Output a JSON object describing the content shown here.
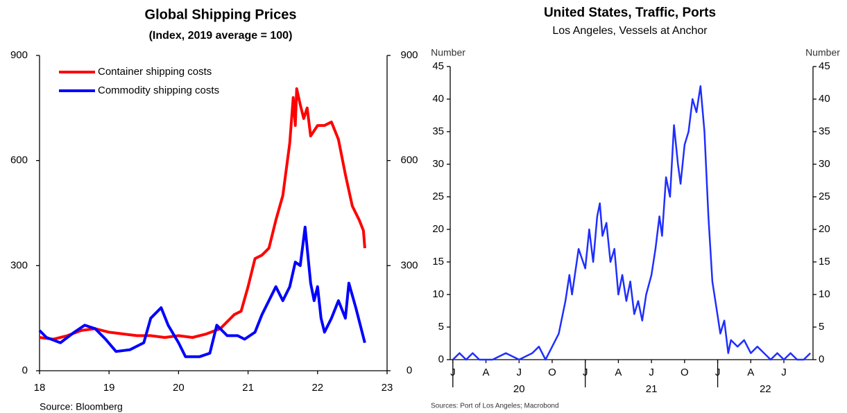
{
  "chart_data": [
    {
      "type": "line",
      "title": "Global Shipping Prices",
      "subtitle": "(Index,  2019 average = 100)",
      "source": "Source: Bloomberg",
      "xlim": [
        18,
        23
      ],
      "xticks": [
        18,
        19,
        20,
        21,
        22,
        23
      ],
      "ylim": [
        0,
        900
      ],
      "yticks": [
        0,
        300,
        600,
        900
      ],
      "y2lim": [
        0,
        900
      ],
      "y2ticks": [
        0,
        300,
        600,
        900
      ],
      "legend": "upper-left",
      "series": [
        {
          "name": "Container shipping costs",
          "color": "#ff0000",
          "x": [
            18.0,
            18.2,
            18.4,
            18.6,
            18.8,
            19.0,
            19.2,
            19.4,
            19.6,
            19.8,
            20.0,
            20.2,
            20.4,
            20.6,
            20.8,
            20.9,
            21.0,
            21.1,
            21.2,
            21.3,
            21.4,
            21.5,
            21.6,
            21.65,
            21.68,
            21.7,
            21.75,
            21.8,
            21.85,
            21.9,
            22.0,
            22.1,
            22.2,
            22.3,
            22.4,
            22.5,
            22.6,
            22.66,
            22.68
          ],
          "values": [
            95,
            90,
            100,
            115,
            120,
            110,
            105,
            100,
            100,
            95,
            100,
            95,
            105,
            120,
            160,
            170,
            240,
            320,
            330,
            350,
            430,
            500,
            650,
            780,
            700,
            805,
            760,
            720,
            750,
            670,
            700,
            700,
            710,
            660,
            560,
            470,
            430,
            400,
            350
          ]
        },
        {
          "name": "Commodity shipping costs",
          "color": "#0000ff",
          "x": [
            18.0,
            18.1,
            18.3,
            18.5,
            18.65,
            18.8,
            18.95,
            19.1,
            19.3,
            19.5,
            19.6,
            19.75,
            19.85,
            20.0,
            20.1,
            20.3,
            20.45,
            20.55,
            20.7,
            20.85,
            20.95,
            21.1,
            21.2,
            21.4,
            21.5,
            21.6,
            21.68,
            21.75,
            21.82,
            21.9,
            21.95,
            22.0,
            22.05,
            22.1,
            22.2,
            22.3,
            22.4,
            22.45,
            22.55,
            22.68
          ],
          "values": [
            115,
            95,
            80,
            110,
            130,
            120,
            90,
            55,
            60,
            80,
            150,
            180,
            130,
            80,
            40,
            40,
            50,
            130,
            100,
            100,
            90,
            110,
            160,
            240,
            200,
            240,
            310,
            300,
            410,
            250,
            200,
            240,
            150,
            110,
            150,
            200,
            150,
            250,
            180,
            80
          ]
        }
      ]
    },
    {
      "type": "line",
      "title": "United States, Traffic, Ports",
      "subtitle": "Los Angeles, Vessels at Anchor",
      "source": "Sources: Port of Los Angeles; Macrobond",
      "ylabel": "Number",
      "y2label": "Number",
      "xlim": [
        19.98,
        22.72
      ],
      "xticks": [
        {
          "value": 20,
          "label": "J"
        },
        {
          "value": 20.25,
          "label": "A"
        },
        {
          "value": 20.5,
          "label": "J"
        },
        {
          "value": 20.75,
          "label": "O"
        },
        {
          "value": 21,
          "label": "J"
        },
        {
          "value": 21.25,
          "label": "A"
        },
        {
          "value": 21.5,
          "label": "J"
        },
        {
          "value": 21.75,
          "label": "O"
        },
        {
          "value": 22,
          "label": "J"
        },
        {
          "value": 22.25,
          "label": "A"
        },
        {
          "value": 22.5,
          "label": "J"
        }
      ],
      "year_ticks": [
        20,
        21,
        22
      ],
      "ylim": [
        0,
        45
      ],
      "yticks": [
        0,
        5,
        10,
        15,
        20,
        25,
        30,
        35,
        40,
        45
      ],
      "y2lim": [
        0,
        45
      ],
      "y2ticks": [
        0,
        5,
        10,
        15,
        20,
        25,
        30,
        35,
        40,
        45
      ],
      "color": "#1f2eff",
      "x": [
        20.0,
        20.05,
        20.1,
        20.15,
        20.2,
        20.3,
        20.4,
        20.5,
        20.6,
        20.65,
        20.7,
        20.75,
        20.8,
        20.85,
        20.88,
        20.9,
        20.95,
        21.0,
        21.03,
        21.06,
        21.09,
        21.11,
        21.13,
        21.16,
        21.19,
        21.22,
        21.25,
        21.28,
        21.31,
        21.34,
        21.37,
        21.4,
        21.43,
        21.46,
        21.5,
        21.53,
        21.56,
        21.58,
        21.61,
        21.64,
        21.67,
        21.7,
        21.72,
        21.75,
        21.78,
        21.81,
        21.84,
        21.87,
        21.9,
        21.93,
        21.96,
        21.99,
        22.02,
        22.05,
        22.08,
        22.1,
        22.15,
        22.2,
        22.25,
        22.3,
        22.35,
        22.4,
        22.45,
        22.5,
        22.55,
        22.6,
        22.65,
        22.7
      ],
      "values": [
        0,
        1,
        0,
        1,
        0,
        0,
        1,
        0,
        1,
        2,
        0,
        2,
        4,
        9,
        13,
        10,
        17,
        14,
        20,
        15,
        22,
        24,
        19,
        21,
        15,
        17,
        10,
        13,
        9,
        12,
        7,
        9,
        6,
        10,
        13,
        17,
        22,
        19,
        28,
        25,
        36,
        30,
        27,
        33,
        35,
        40,
        38,
        42,
        35,
        22,
        12,
        8,
        4,
        6,
        1,
        3,
        2,
        3,
        1,
        2,
        1,
        0,
        1,
        0,
        1,
        0,
        0,
        1
      ]
    }
  ]
}
